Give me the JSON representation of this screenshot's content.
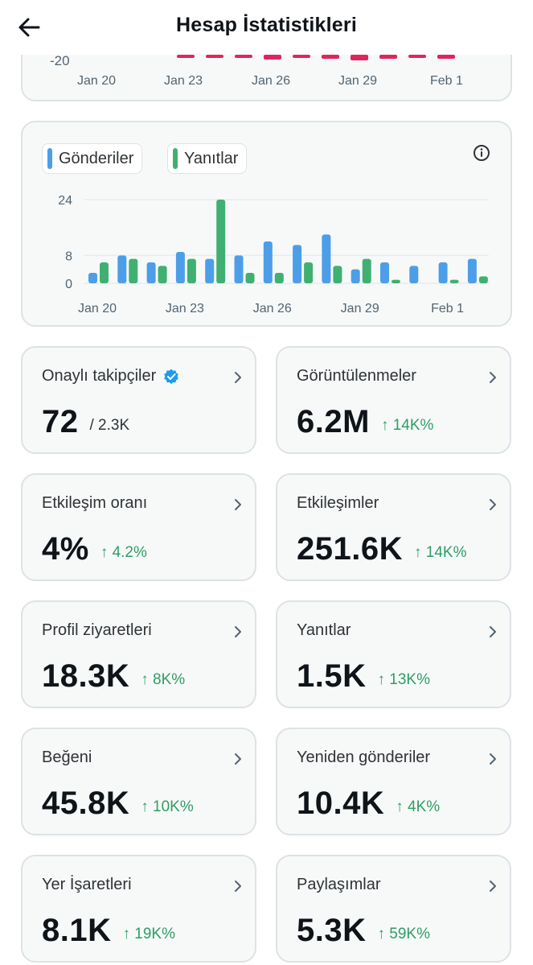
{
  "header": {
    "title": "Hesap İstatistikleri"
  },
  "top_chart": {
    "y_label": "-20",
    "x_ticks": [
      "Jan 20",
      "Jan 23",
      "Jan 26",
      "Jan 29",
      "Feb 1"
    ],
    "bar_color": "#e0245e"
  },
  "chart_data": {
    "type": "bar",
    "categories": [
      "Jan 20",
      "Jan 21",
      "Jan 22",
      "Jan 23",
      "Jan 24",
      "Jan 25",
      "Jan 26",
      "Jan 27",
      "Jan 28",
      "Jan 29",
      "Jan 30",
      "Jan 31",
      "Feb 1",
      "Feb 2"
    ],
    "x_tick_labels": [
      "Jan 20",
      "Jan 23",
      "Jan 26",
      "Jan 29",
      "Feb 1"
    ],
    "y_ticks": [
      "24",
      "8",
      "0"
    ],
    "ylim": [
      0,
      26
    ],
    "series": [
      {
        "name": "Gönderiler",
        "color": "#4c9ee8",
        "values": [
          3,
          8,
          6,
          9,
          7,
          8,
          12,
          11,
          14,
          4,
          6,
          5,
          6,
          7
        ]
      },
      {
        "name": "Yanıtlar",
        "color": "#40b072",
        "values": [
          6,
          7,
          5,
          7,
          24,
          3,
          3,
          6,
          5,
          7,
          1,
          0,
          1,
          2
        ]
      }
    ]
  },
  "stats": [
    {
      "label": "Onaylı takipçiler",
      "value": "72",
      "sub": "/ 2.3K",
      "delta": ""
    },
    {
      "label": "Görüntülenmeler",
      "value": "6.2M",
      "sub": "",
      "delta": "↑ 14K%"
    },
    {
      "label": "Etkileşim oranı",
      "value": "4%",
      "sub": "",
      "delta": "↑ 4.2%"
    },
    {
      "label": "Etkileşimler",
      "value": "251.6K",
      "sub": "",
      "delta": "↑ 14K%"
    },
    {
      "label": "Profil ziyaretleri",
      "value": "18.3K",
      "sub": "",
      "delta": "↑ 8K%"
    },
    {
      "label": "Yanıtlar",
      "value": "1.5K",
      "sub": "",
      "delta": "↑ 13K%"
    },
    {
      "label": "Beğeni",
      "value": "45.8K",
      "sub": "",
      "delta": "↑ 10K%"
    },
    {
      "label": "Yeniden gönderiler",
      "value": "10.4K",
      "sub": "",
      "delta": "↑ 4K%"
    },
    {
      "label": "Yer İşaretleri",
      "value": "8.1K",
      "sub": "",
      "delta": "↑ 19K%"
    },
    {
      "label": "Paylaşımlar",
      "value": "5.3K",
      "sub": "",
      "delta": "↑ 59K%"
    }
  ]
}
